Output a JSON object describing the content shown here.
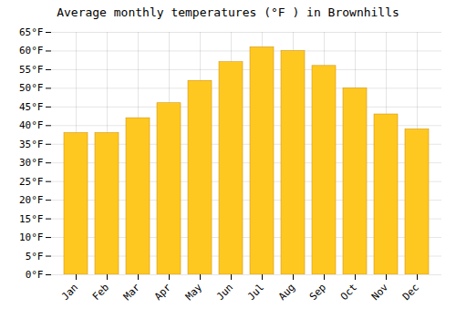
{
  "chart_data": {
    "type": "bar",
    "title": "Average monthly temperatures (°F ) in Brownhills",
    "categories": [
      "Jan",
      "Feb",
      "Mar",
      "Apr",
      "May",
      "Jun",
      "Jul",
      "Aug",
      "Sep",
      "Oct",
      "Nov",
      "Dec"
    ],
    "values": [
      38,
      38,
      42,
      46,
      52,
      57,
      61,
      60,
      56,
      50,
      43,
      39
    ],
    "color": "#FFC820",
    "ylim": [
      0,
      65
    ],
    "yticks": [
      {
        "value": 0,
        "label": "0°F"
      },
      {
        "value": 5,
        "label": "5°F"
      },
      {
        "value": 10,
        "label": "10°F"
      },
      {
        "value": 15,
        "label": "15°F"
      },
      {
        "value": 20,
        "label": "20°F"
      },
      {
        "value": 25,
        "label": "25°F"
      },
      {
        "value": 30,
        "label": "30°F"
      },
      {
        "value": 35,
        "label": "35°F"
      },
      {
        "value": 40,
        "label": "40°F"
      },
      {
        "value": 45,
        "label": "45°F"
      },
      {
        "value": 50,
        "label": "50°F"
      },
      {
        "value": 55,
        "label": "55°F"
      },
      {
        "value": 60,
        "label": "60°F"
      },
      {
        "value": 65,
        "label": "65°F"
      }
    ],
    "grid": true
  }
}
